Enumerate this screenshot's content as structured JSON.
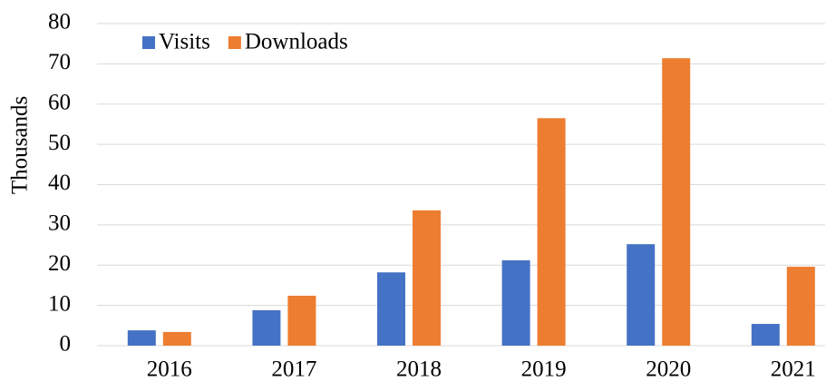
{
  "chart_data": {
    "type": "bar",
    "y_label": "Thousands",
    "categories": [
      "2016",
      "2017",
      "2018",
      "2019",
      "2020",
      "2021"
    ],
    "series": [
      {
        "name": "Visits",
        "color": "#4472c4",
        "values": [
          3.8,
          8.8,
          18.2,
          21.2,
          25.2,
          5.4
        ]
      },
      {
        "name": "Downloads",
        "color": "#ed7d31",
        "values": [
          3.4,
          12.4,
          33.6,
          56.5,
          71.4,
          19.6
        ]
      }
    ],
    "ylim": [
      0,
      80
    ],
    "yticks": [
      0,
      10,
      20,
      30,
      40,
      50,
      60,
      70,
      80
    ],
    "grid": true,
    "legend": "top-left"
  }
}
